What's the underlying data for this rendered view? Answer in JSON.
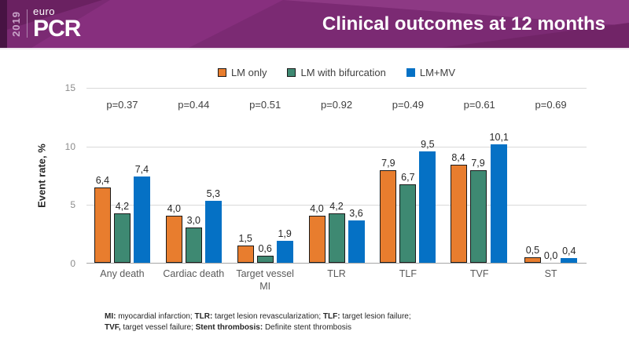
{
  "header": {
    "logo": {
      "year": "2019",
      "euro": "euro",
      "pcr": "PCR"
    },
    "title": "Clinical outcomes at 12 months",
    "background_color": "#7B2A73"
  },
  "chart_data": {
    "type": "bar",
    "title": "Clinical outcomes at 12 months",
    "xlabel": "",
    "ylabel": "Event rate, %",
    "ylim": [
      0,
      15
    ],
    "yticks": [
      0,
      5,
      10,
      15
    ],
    "grid": true,
    "legend_position": "top-center",
    "label_format": "comma-decimal",
    "categories": [
      "Any death",
      "Cardiac death",
      "Target vessel MI",
      "TLR",
      "TLF",
      "TVF",
      "ST"
    ],
    "p_values": [
      "p=0.37",
      "p=0.44",
      "p=0.51",
      "p=0.92",
      "p=0.49",
      "p=0.61",
      "p=0.69"
    ],
    "series": [
      {
        "name": "LM only",
        "color": "#E87D2E",
        "border": "#1A1A1A",
        "values": [
          6.4,
          4.0,
          1.5,
          4.0,
          7.9,
          8.4,
          0.5
        ]
      },
      {
        "name": "LM with bifurcation",
        "color": "#3E8972",
        "border": "#1A1A1A",
        "values": [
          4.2,
          3.0,
          0.6,
          4.2,
          6.7,
          7.9,
          0.0
        ]
      },
      {
        "name": "LM+MV",
        "color": "#0571C5",
        "border": null,
        "values": [
          7.4,
          5.3,
          1.9,
          3.6,
          9.5,
          10.1,
          0.4
        ]
      }
    ]
  },
  "footnote": {
    "line1": [
      {
        "t": "MI:",
        "b": true
      },
      {
        "t": " myocardial infarction;  "
      },
      {
        "t": "TLR:",
        "b": true
      },
      {
        "t": " target lesion revascularization;  "
      },
      {
        "t": "TLF:",
        "b": true
      },
      {
        "t": " target lesion failure;"
      }
    ],
    "line2": [
      {
        "t": "TVF,",
        "b": true
      },
      {
        "t": " target vessel failure;  "
      },
      {
        "t": "Stent thrombosis:",
        "b": true
      },
      {
        "t": " Definite stent thrombosis"
      }
    ]
  }
}
